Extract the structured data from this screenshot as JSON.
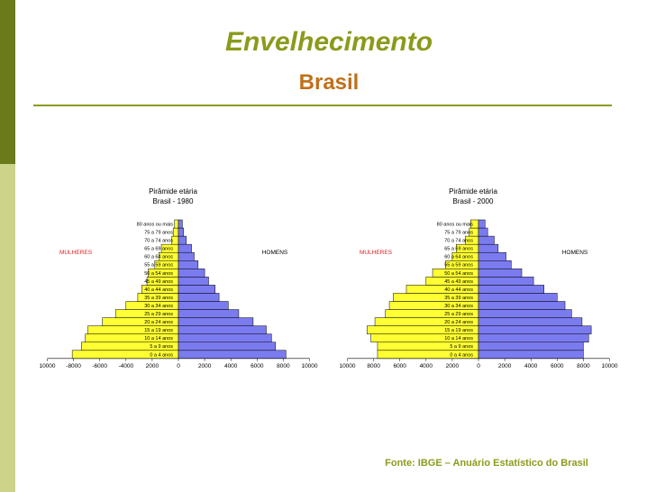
{
  "slide": {
    "title": "Envelhecimento",
    "subtitle": "Brasil",
    "source": "Fonte: IBGE – Anuário Estatístico do Brasil",
    "colors": {
      "title": "#8c9a1c",
      "subtitle": "#c0701a",
      "women_bar": "#ffff33",
      "men_bar": "#7b7bf0",
      "women_label": "#e02020"
    }
  },
  "chart_data": [
    {
      "type": "bar",
      "orientation": "horizontal",
      "title": "Pirâmide etária",
      "subtitle": "Brasil - 1980",
      "left_label": "MULHERES",
      "right_label": "HOMENS",
      "categories": [
        "0 a 4 anos",
        "5 a 9 anos",
        "10 a 14 anos",
        "15 a 19 anos",
        "20 a 24 anos",
        "25 a 29 anos",
        "30 a 34 anos",
        "35 a 39 anos",
        "40 a 44 anos",
        "45 a 49 anos",
        "50 a 54 anos",
        "55 a 59 anos",
        "60 a 64 anos",
        "65 a 69 anos",
        "70 a 74 anos",
        "75 a 79 anos",
        "80 anos ou mais"
      ],
      "series": [
        {
          "name": "MULHERES",
          "values": [
            -8100,
            -7400,
            -7100,
            -6900,
            -5800,
            -4800,
            -4000,
            -3100,
            -2800,
            -2400,
            -2300,
            -1800,
            -1500,
            -1300,
            -500,
            -400,
            -300
          ]
        },
        {
          "name": "HOMENS",
          "values": [
            8200,
            7400,
            7100,
            6700,
            5700,
            4600,
            3800,
            3100,
            2800,
            2300,
            2000,
            1500,
            1200,
            1000,
            600,
            400,
            300
          ]
        }
      ],
      "xlim": [
        -10000,
        10000
      ],
      "xticks": [
        "10000",
        "-8000",
        "-6000",
        "-4000",
        "2000",
        "0",
        "2000",
        "4000",
        "6000",
        "8000",
        "10000"
      ]
    },
    {
      "type": "bar",
      "orientation": "horizontal",
      "title": "Pirâmide etária",
      "subtitle": "Brasil - 2000",
      "left_label": "MULHERES",
      "right_label": "HOMENS",
      "categories": [
        "0 a 4 anos",
        "5 a 9 anos",
        "10 a 14 anos",
        "15 a 19 anos",
        "20 a 24 anos",
        "25 a 29 anos",
        "30 a 34 anos",
        "35 a 39 anos",
        "40 a 44 anos",
        "45 a 49 anos",
        "50 a 54 anos",
        "55 a 59 anos",
        "60 a 64 anos",
        "65 a 69 anos",
        "70 a 74 anos",
        "75 a 79 anos",
        "80 anos ou mais"
      ],
      "series": [
        {
          "name": "MULHERES",
          "values": [
            -7700,
            -7700,
            -8200,
            -8500,
            -7900,
            -7100,
            -6800,
            -6500,
            -5500,
            -4000,
            -3500,
            -2500,
            -2000,
            -1700,
            -1000,
            -700,
            -600
          ]
        },
        {
          "name": "HOMENS",
          "values": [
            8000,
            8000,
            8400,
            8600,
            7900,
            7100,
            6600,
            6000,
            5000,
            4200,
            3300,
            2500,
            2100,
            1500,
            1200,
            700,
            500
          ]
        }
      ],
      "xlim": [
        -10000,
        10000
      ],
      "xticks": [
        "10000",
        "8000",
        "6000",
        "4000",
        "2000",
        "0",
        "2000",
        "4000",
        "6000",
        "8000",
        "10000"
      ]
    }
  ]
}
